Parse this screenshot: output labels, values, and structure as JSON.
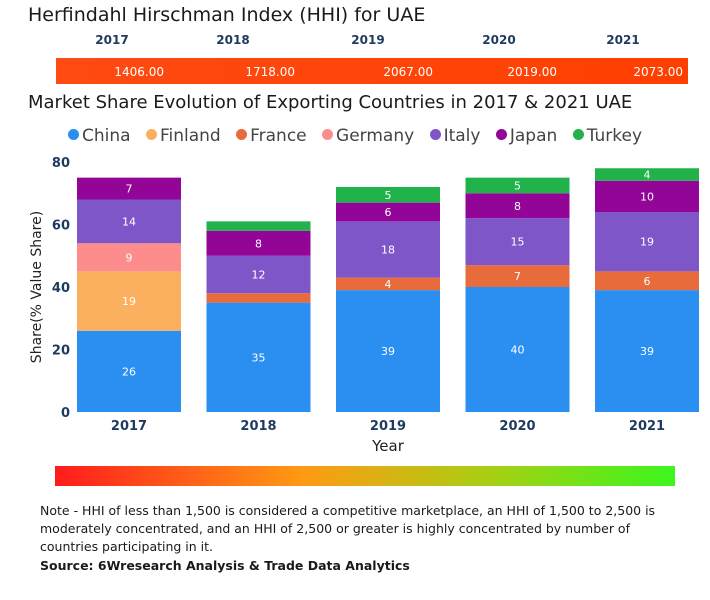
{
  "hhi": {
    "title": "Herfindahl Hirschman Index (HHI) for UAE",
    "years": [
      "2017",
      "2018",
      "2019",
      "2020",
      "2021"
    ],
    "values": [
      "1406.00",
      "1718.00",
      "2067.00",
      "2019.00",
      "2073.00"
    ],
    "bar_color": "#ff4a12"
  },
  "chart_data": {
    "type": "bar",
    "stacked": true,
    "title": "Market Share Evolution of Exporting Countries in 2017 & 2021 UAE",
    "xlabel": "Year",
    "ylabel": "Share(% Value Share)",
    "ylim": [
      0,
      80
    ],
    "yticks": [
      "0",
      "20",
      "40",
      "60",
      "80"
    ],
    "categories": [
      "2017",
      "2018",
      "2019",
      "2020",
      "2021"
    ],
    "legend_position": "top",
    "series": [
      {
        "name": "China",
        "color": "#2a8ff0",
        "values": [
          26,
          35,
          39,
          40,
          39
        ],
        "labels": [
          "26",
          "35",
          "39",
          "40",
          "39"
        ]
      },
      {
        "name": "Finland",
        "color": "#fbb060",
        "values": [
          19,
          0,
          0,
          0,
          0
        ],
        "labels": [
          "19",
          "",
          "",
          "",
          ""
        ]
      },
      {
        "name": "France",
        "color": "#e86b3c",
        "values": [
          0,
          3,
          4,
          7,
          6
        ],
        "labels": [
          "",
          "",
          "4",
          "7",
          "6"
        ]
      },
      {
        "name": "Germany",
        "color": "#fc8d8c",
        "values": [
          9,
          0,
          0,
          0,
          0
        ],
        "labels": [
          "9",
          "",
          "",
          "",
          ""
        ]
      },
      {
        "name": "Italy",
        "color": "#7e56c8",
        "values": [
          14,
          12,
          18,
          15,
          19
        ],
        "labels": [
          "14",
          "12",
          "18",
          "15",
          "19"
        ]
      },
      {
        "name": "Japan",
        "color": "#920596",
        "values": [
          7,
          8,
          6,
          8,
          10
        ],
        "labels": [
          "7",
          "8",
          "6",
          "8",
          "10"
        ]
      },
      {
        "name": "Turkey",
        "color": "#22b24c",
        "values": [
          0,
          3,
          5,
          5,
          4
        ],
        "labels": [
          "",
          "",
          "5",
          "5",
          "4"
        ]
      }
    ]
  },
  "note": "Note - HHI of less than 1,500 is considered a competitive marketplace, an HHI of 1,500 to 2,500 is moderately concentrated, and an HHI of 2,500 or greater is highly concentrated by number of countries participating in it.",
  "source": "Source: 6Wresearch Analysis & Trade Data Analytics"
}
